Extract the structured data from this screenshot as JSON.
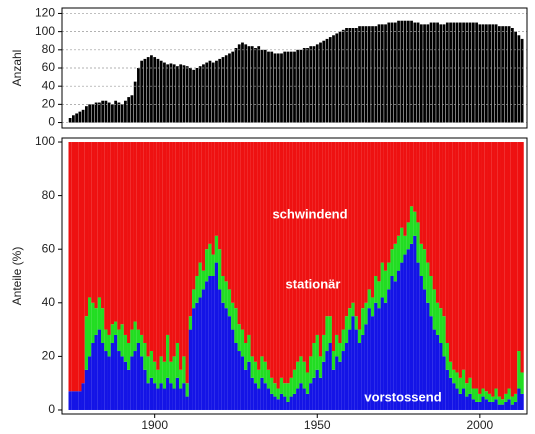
{
  "chart_data": [
    {
      "type": "bar",
      "ylabel": "Anzahl",
      "color": "#000000",
      "grid": true,
      "x": [
        1874,
        1875,
        1876,
        1877,
        1878,
        1879,
        1880,
        1881,
        1882,
        1883,
        1884,
        1885,
        1886,
        1887,
        1888,
        1889,
        1890,
        1891,
        1892,
        1893,
        1894,
        1895,
        1896,
        1897,
        1898,
        1899,
        1900,
        1901,
        1902,
        1903,
        1904,
        1905,
        1906,
        1907,
        1908,
        1909,
        1910,
        1911,
        1912,
        1913,
        1914,
        1915,
        1916,
        1917,
        1918,
        1919,
        1920,
        1921,
        1922,
        1923,
        1924,
        1925,
        1926,
        1927,
        1928,
        1929,
        1930,
        1931,
        1932,
        1933,
        1934,
        1935,
        1936,
        1937,
        1938,
        1939,
        1940,
        1941,
        1942,
        1943,
        1944,
        1945,
        1946,
        1947,
        1948,
        1949,
        1950,
        1951,
        1952,
        1953,
        1954,
        1955,
        1956,
        1957,
        1958,
        1959,
        1960,
        1961,
        1962,
        1963,
        1964,
        1965,
        1966,
        1967,
        1968,
        1969,
        1970,
        1971,
        1972,
        1973,
        1974,
        1975,
        1976,
        1977,
        1978,
        1979,
        1980,
        1981,
        1982,
        1983,
        1984,
        1985,
        1986,
        1987,
        1988,
        1989,
        1990,
        1991,
        1992,
        1993,
        1994,
        1995,
        1996,
        1997,
        1998,
        1999,
        2000,
        2001,
        2002,
        2003,
        2004,
        2005,
        2006,
        2007,
        2008,
        2009,
        2010,
        2011,
        2012,
        2013
      ],
      "values": [
        5,
        8,
        10,
        12,
        14,
        18,
        20,
        20,
        22,
        22,
        24,
        24,
        22,
        20,
        24,
        22,
        20,
        24,
        28,
        30,
        45,
        60,
        68,
        70,
        72,
        74,
        72,
        70,
        68,
        66,
        64,
        65,
        64,
        62,
        64,
        63,
        62,
        60,
        58,
        60,
        62,
        64,
        66,
        68,
        66,
        68,
        70,
        72,
        74,
        76,
        78,
        82,
        86,
        88,
        86,
        84,
        84,
        82,
        84,
        80,
        80,
        78,
        78,
        76,
        76,
        76,
        78,
        78,
        78,
        78,
        80,
        80,
        82,
        82,
        84,
        84,
        86,
        88,
        90,
        92,
        94,
        96,
        98,
        100,
        102,
        104,
        104,
        104,
        104,
        106,
        106,
        106,
        106,
        106,
        106,
        108,
        108,
        108,
        110,
        110,
        110,
        112,
        112,
        112,
        112,
        112,
        110,
        110,
        108,
        108,
        108,
        110,
        110,
        110,
        108,
        108,
        110,
        110,
        110,
        110,
        110,
        110,
        110,
        110,
        110,
        110,
        108,
        108,
        108,
        108,
        108,
        108,
        106,
        106,
        106,
        106,
        104,
        100,
        96,
        92
      ],
      "xlim": [
        1871.5,
        2014.5
      ],
      "ylim": [
        -6,
        126
      ],
      "yticks": [
        0,
        20,
        40,
        60,
        80,
        100,
        120
      ]
    },
    {
      "type": "stacked_bar",
      "ylabel": "Anteile  (%)",
      "annotations": [
        "schwindend",
        "stationär",
        "vorstossend"
      ],
      "x": [
        1874,
        1875,
        1876,
        1877,
        1878,
        1879,
        1880,
        1881,
        1882,
        1883,
        1884,
        1885,
        1886,
        1887,
        1888,
        1889,
        1890,
        1891,
        1892,
        1893,
        1894,
        1895,
        1896,
        1897,
        1898,
        1899,
        1900,
        1901,
        1902,
        1903,
        1904,
        1905,
        1906,
        1907,
        1908,
        1909,
        1910,
        1911,
        1912,
        1913,
        1914,
        1915,
        1916,
        1917,
        1918,
        1919,
        1920,
        1921,
        1922,
        1923,
        1924,
        1925,
        1926,
        1927,
        1928,
        1929,
        1930,
        1931,
        1932,
        1933,
        1934,
        1935,
        1936,
        1937,
        1938,
        1939,
        1940,
        1941,
        1942,
        1943,
        1944,
        1945,
        1946,
        1947,
        1948,
        1949,
        1950,
        1951,
        1952,
        1953,
        1954,
        1955,
        1956,
        1957,
        1958,
        1959,
        1960,
        1961,
        1962,
        1963,
        1964,
        1965,
        1966,
        1967,
        1968,
        1969,
        1970,
        1971,
        1972,
        1973,
        1974,
        1975,
        1976,
        1977,
        1978,
        1979,
        1980,
        1981,
        1982,
        1983,
        1984,
        1985,
        1986,
        1987,
        1988,
        1989,
        1990,
        1991,
        1992,
        1993,
        1994,
        1995,
        1996,
        1997,
        1998,
        1999,
        2000,
        2001,
        2002,
        2003,
        2004,
        2005,
        2006,
        2007,
        2008,
        2009,
        2010,
        2011,
        2012,
        2013
      ],
      "series": [
        {
          "name": "vorstossend",
          "color": "#1414e6",
          "values": [
            7,
            7,
            7,
            7,
            10,
            15,
            20,
            25,
            28,
            30,
            25,
            22,
            20,
            25,
            28,
            22,
            20,
            18,
            15,
            20,
            22,
            25,
            20,
            15,
            10,
            12,
            10,
            8,
            10,
            8,
            12,
            10,
            8,
            12,
            8,
            10,
            5,
            30,
            38,
            40,
            42,
            45,
            48,
            50,
            50,
            55,
            45,
            40,
            38,
            35,
            30,
            25,
            22,
            20,
            15,
            18,
            12,
            10,
            8,
            12,
            10,
            8,
            6,
            5,
            4,
            6,
            5,
            3,
            5,
            6,
            8,
            10,
            8,
            6,
            10,
            12,
            15,
            12,
            18,
            22,
            25,
            15,
            20,
            18,
            22,
            25,
            30,
            35,
            30,
            25,
            28,
            32,
            38,
            35,
            40,
            38,
            42,
            40,
            45,
            50,
            48,
            52,
            55,
            58,
            60,
            62,
            65,
            55,
            50,
            45,
            40,
            35,
            30,
            28,
            25,
            20,
            15,
            12,
            10,
            8,
            6,
            8,
            5,
            6,
            4,
            3,
            3,
            5,
            4,
            3,
            3,
            4,
            2,
            2,
            3,
            4,
            2,
            3,
            8,
            6
          ]
        },
        {
          "name": "stationär",
          "color": "#22dd22",
          "values": [
            0,
            0,
            0,
            0,
            0,
            20,
            22,
            15,
            10,
            12,
            13,
            8,
            8,
            7,
            5,
            8,
            12,
            10,
            10,
            10,
            11,
            5,
            8,
            10,
            10,
            10,
            8,
            7,
            10,
            10,
            16,
            8,
            12,
            13,
            7,
            10,
            5,
            5,
            7,
            10,
            13,
            7,
            12,
            12,
            8,
            10,
            15,
            10,
            10,
            10,
            10,
            13,
            10,
            10,
            10,
            10,
            8,
            8,
            7,
            8,
            8,
            7,
            6,
            5,
            4,
            6,
            5,
            7,
            7,
            9,
            10,
            10,
            10,
            8,
            10,
            13,
            13,
            8,
            10,
            13,
            10,
            7,
            8,
            7,
            8,
            10,
            8,
            5,
            5,
            5,
            10,
            8,
            7,
            7,
            10,
            10,
            13,
            12,
            10,
            10,
            14,
            13,
            13,
            7,
            10,
            14,
            9,
            15,
            12,
            15,
            15,
            15,
            15,
            12,
            13,
            15,
            10,
            6,
            5,
            6,
            6,
            7,
            5,
            6,
            4,
            5,
            3,
            3,
            3,
            3,
            2,
            4,
            3,
            2,
            3,
            4,
            3,
            3,
            14,
            8
          ]
        },
        {
          "name": "schwindend",
          "color": "#ee1111",
          "values": [
            93,
            93,
            93,
            93,
            90,
            65,
            58,
            60,
            62,
            58,
            62,
            70,
            72,
            68,
            67,
            70,
            68,
            72,
            75,
            70,
            67,
            70,
            72,
            75,
            80,
            78,
            82,
            85,
            80,
            82,
            72,
            82,
            80,
            75,
            85,
            80,
            90,
            65,
            55,
            50,
            45,
            48,
            40,
            38,
            42,
            35,
            40,
            50,
            52,
            55,
            60,
            62,
            68,
            70,
            75,
            72,
            80,
            82,
            85,
            80,
            82,
            85,
            88,
            90,
            92,
            88,
            90,
            90,
            88,
            85,
            82,
            80,
            82,
            86,
            80,
            75,
            72,
            80,
            72,
            65,
            65,
            78,
            72,
            75,
            70,
            65,
            62,
            60,
            65,
            70,
            62,
            60,
            55,
            58,
            50,
            52,
            45,
            48,
            45,
            40,
            38,
            35,
            32,
            35,
            30,
            24,
            26,
            30,
            38,
            40,
            45,
            50,
            55,
            60,
            62,
            65,
            75,
            82,
            85,
            86,
            88,
            85,
            90,
            88,
            92,
            92,
            94,
            92,
            93,
            94,
            95,
            92,
            95,
            96,
            94,
            92,
            95,
            94,
            78,
            86
          ]
        }
      ],
      "xlim": [
        1871.5,
        2014.5
      ],
      "xticks": [
        1900,
        1950,
        2000
      ],
      "ylim": [
        -1.5,
        101.5
      ],
      "yticks": [
        0,
        20,
        40,
        60,
        80,
        100
      ]
    }
  ]
}
